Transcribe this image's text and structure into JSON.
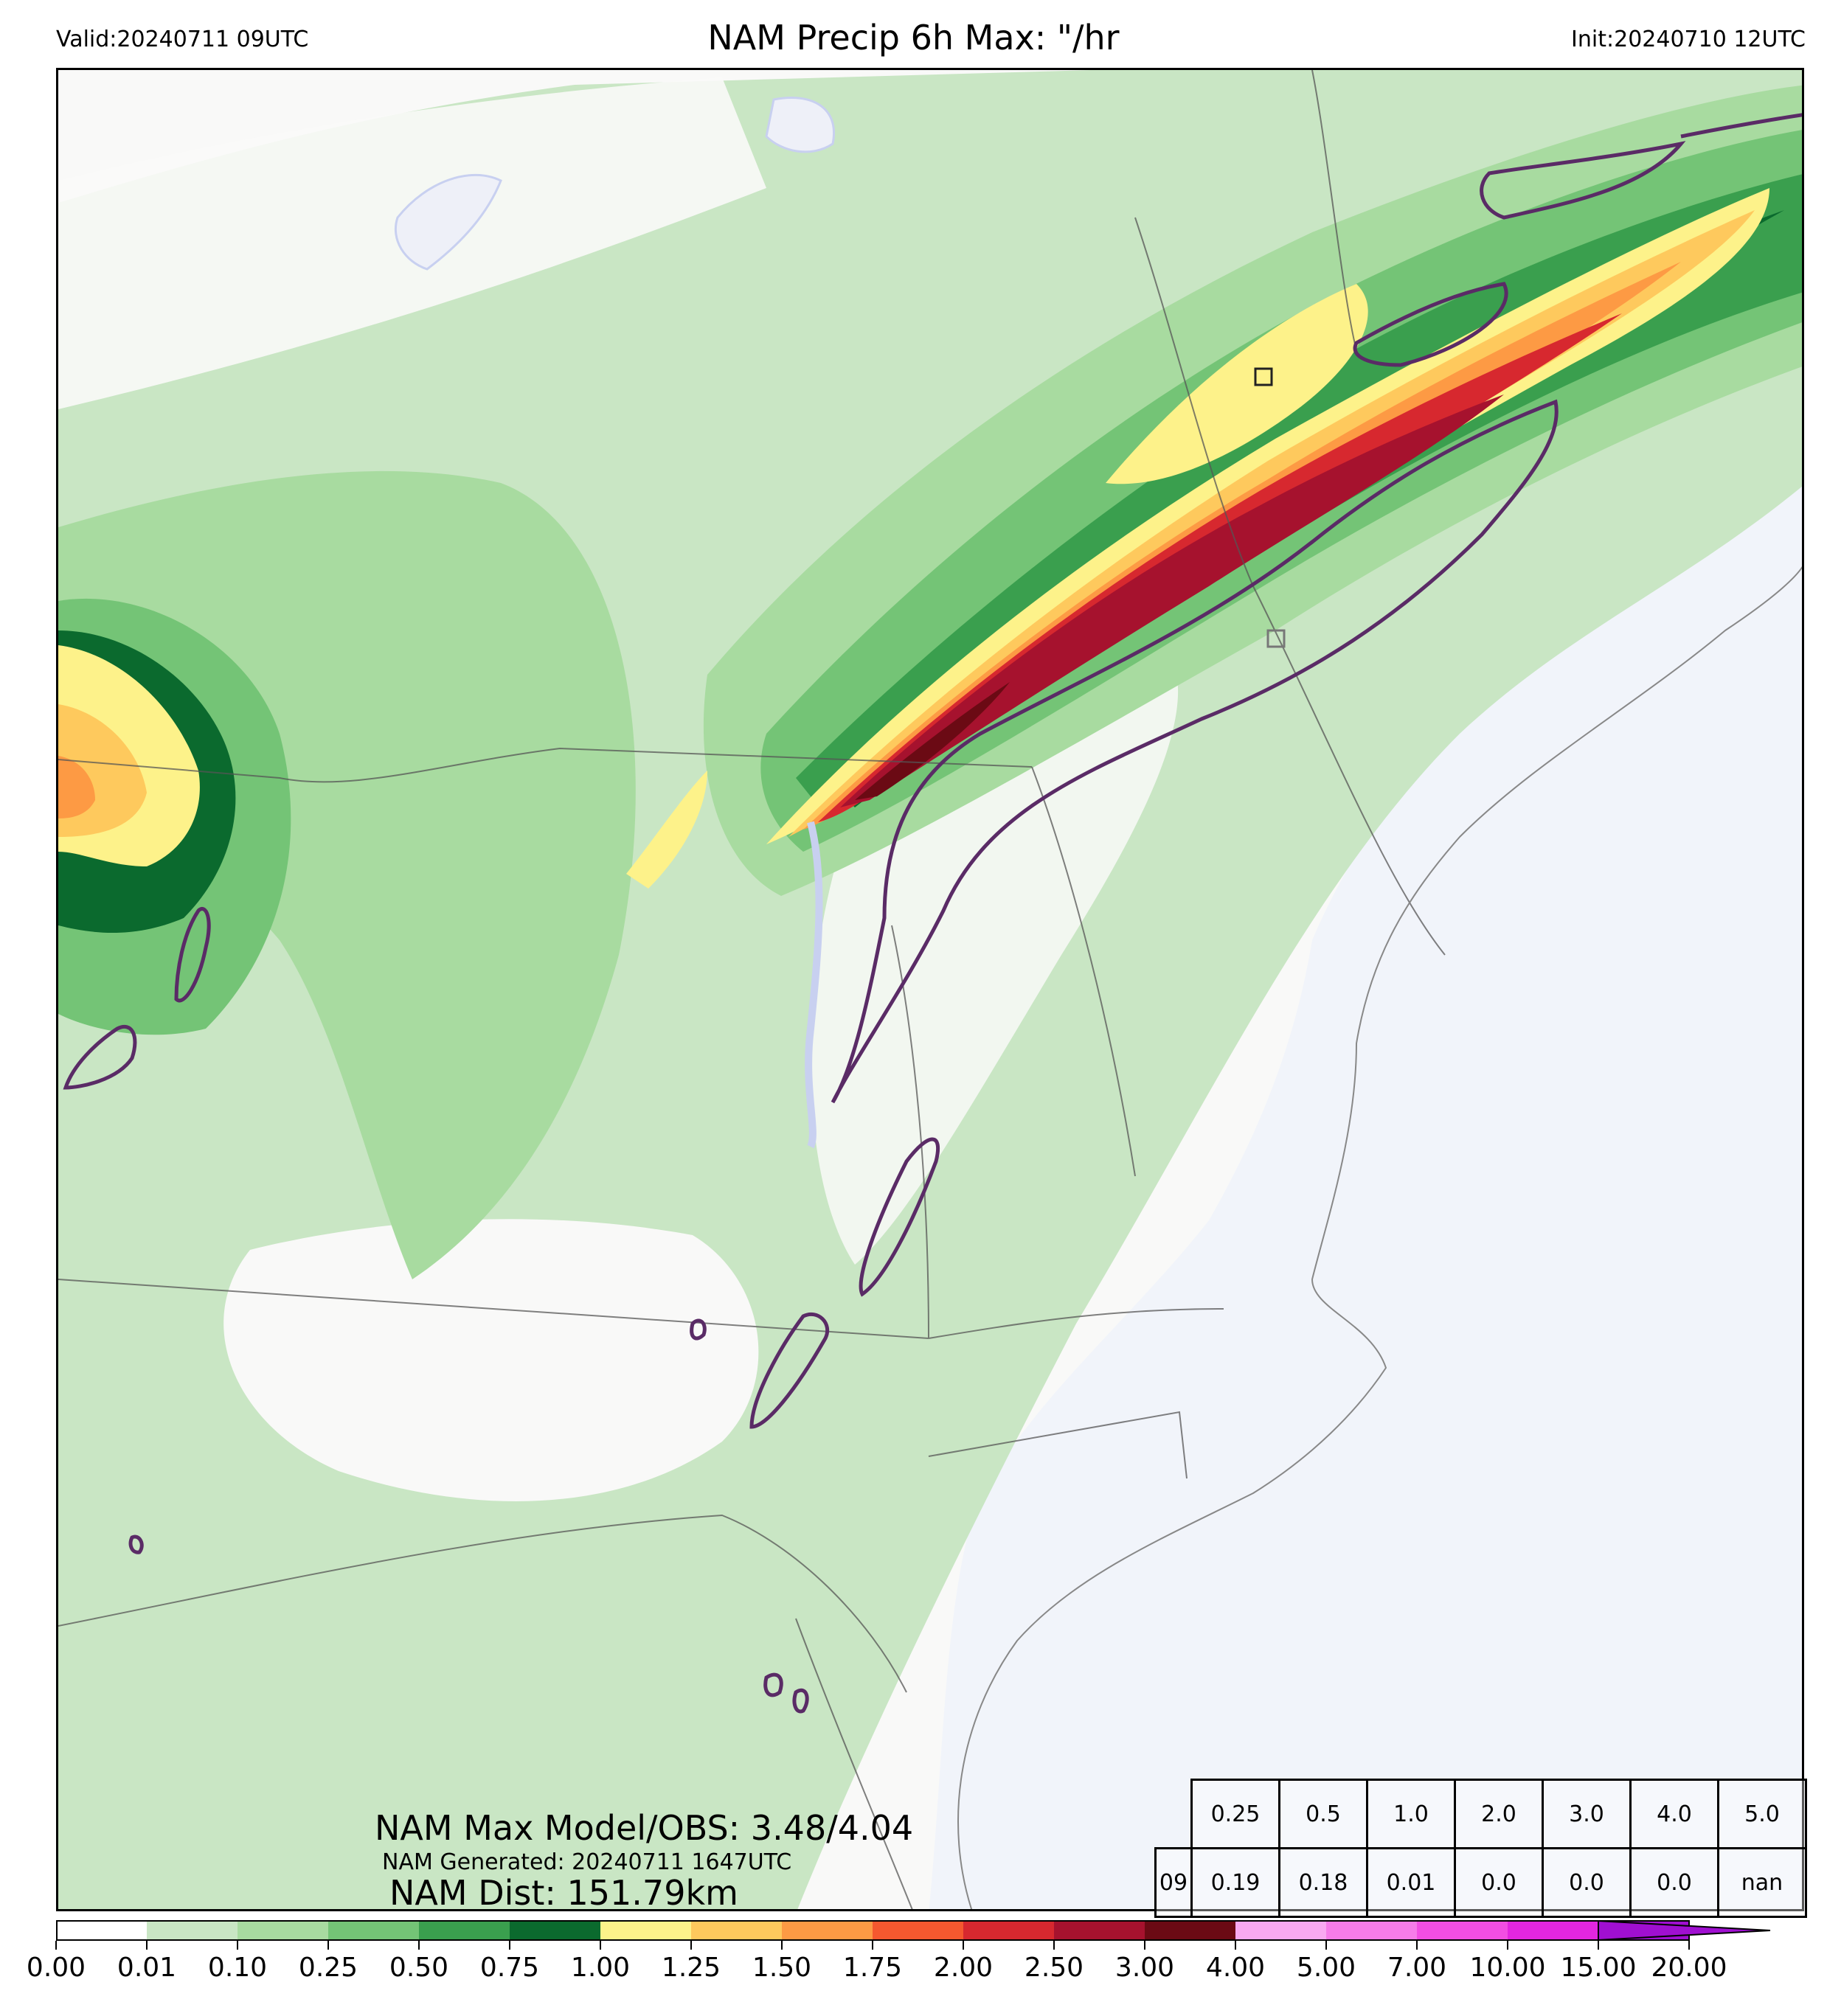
{
  "header": {
    "valid": "Valid:20240711 09UTC",
    "title": "NAM Precip 6h Max: \"/hr",
    "init": "Init:20240710 12UTC"
  },
  "stats": {
    "max_model_obs": "NAM Max Model/OBS: 3.48/4.04",
    "generated": "NAM Generated: 20240711 1647UTC",
    "dist": "NAM Dist: 151.79km"
  },
  "threshold_table": {
    "thresholds": [
      "0.25",
      "0.5",
      "1.0",
      "2.0",
      "3.0",
      "4.0",
      "5.0"
    ],
    "hour": "09",
    "values": [
      "0.19",
      "0.18",
      "0.01",
      "0.0",
      "0.0",
      "0.0",
      "nan"
    ]
  },
  "colorbar": {
    "labels": [
      "0.00",
      "0.01",
      "0.10",
      "0.25",
      "0.50",
      "0.75",
      "1.00",
      "1.25",
      "1.50",
      "1.75",
      "2.00",
      "2.50",
      "3.00",
      "4.00",
      "5.00",
      "7.00",
      "10.00",
      "15.00",
      "20.00"
    ],
    "colors": [
      "#ffffff",
      "#c9e6c4",
      "#a8dba0",
      "#74c476",
      "#3a9f4e",
      "#0b6a2e",
      "#fdf28a",
      "#fec95d",
      "#fd9a44",
      "#f5582f",
      "#d7282f",
      "#a6122e",
      "#6b0a14",
      "#f9a9f1",
      "#f67ce9",
      "#f24ee3",
      "#e326e0",
      "#a00fd1"
    ]
  },
  "map": {
    "ocean_color": "#f1f4fa",
    "land_color": "#f9f9f8",
    "contour_color": "#5a2b66",
    "marker_obs_color": "#222222"
  }
}
